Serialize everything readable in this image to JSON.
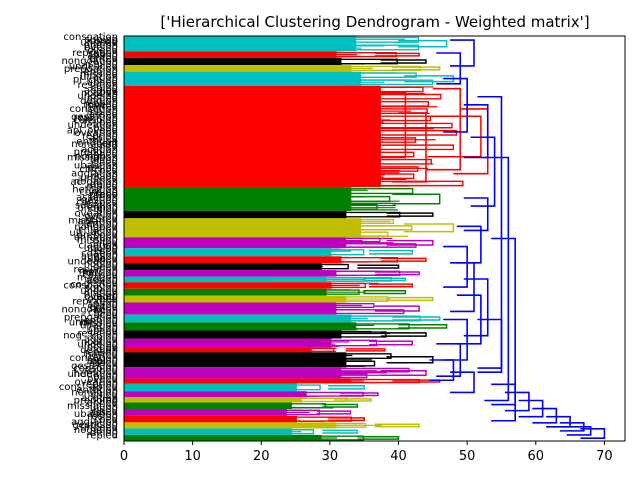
{
  "chart_data": {
    "type": "dendrogram",
    "title": "['Hierarchical Clustering Dendrogram - Weighted matrix']",
    "orientation": "left",
    "xlabel": "",
    "ylabel": "",
    "xlim": [
      0,
      73
    ],
    "x_ticks": [
      0,
      10,
      20,
      30,
      40,
      50,
      60,
      70
    ],
    "grid": false,
    "legend": "none",
    "leaf_labels_visible": [
      "conso",
      "sub",
      "unde",
      "pi",
      "ove",
      "ove",
      "repr",
      "apl",
      "ent",
      "nongo",
      "chi",
      "ac",
      "prepo",
      "enh",
      "missi",
      "ulf",
      "cla",
      "uba",
      "res",
      "co",
      "aggl",
      "nc",
      "unde",
      "nog",
      "de",
      "repl",
      "hetr",
      "cons",
      "ma",
      "ass",
      "gest"
    ],
    "colors": {
      "cyan": "#00bfbf",
      "red": "#ff0000",
      "green": "#008000",
      "black": "#000000",
      "olive": "#bfbf00",
      "magenta": "#bf00bf",
      "blue": "#0000ff"
    },
    "clusters": [
      {
        "color": "cyan",
        "y_top": 0.0,
        "y_bottom": 0.038,
        "merge_height": 47
      },
      {
        "color": "red",
        "y_top": 0.038,
        "y_bottom": 0.054,
        "merge_height": 43
      },
      {
        "color": "black",
        "y_top": 0.054,
        "y_bottom": 0.072,
        "merge_height": 44
      },
      {
        "color": "olive",
        "y_top": 0.072,
        "y_bottom": 0.088,
        "merge_height": 46
      },
      {
        "color": "cyan",
        "y_top": 0.088,
        "y_bottom": 0.123,
        "merge_height": 48
      },
      {
        "color": "red",
        "y_top": 0.123,
        "y_bottom": 0.373,
        "merge_height": 52
      },
      {
        "color": "green",
        "y_top": 0.373,
        "y_bottom": 0.432,
        "merge_height": 46
      },
      {
        "color": "black",
        "y_top": 0.432,
        "y_bottom": 0.45,
        "merge_height": 45
      },
      {
        "color": "olive",
        "y_top": 0.45,
        "y_bottom": 0.497,
        "merge_height": 48
      },
      {
        "color": "magenta",
        "y_top": 0.497,
        "y_bottom": 0.524,
        "merge_height": 45
      },
      {
        "color": "cyan",
        "y_top": 0.524,
        "y_bottom": 0.544,
        "merge_height": 42
      },
      {
        "color": "red",
        "y_top": 0.544,
        "y_bottom": 0.561,
        "merge_height": 44
      },
      {
        "color": "black",
        "y_top": 0.561,
        "y_bottom": 0.578,
        "merge_height": 40
      },
      {
        "color": "magenta",
        "y_top": 0.578,
        "y_bottom": 0.594,
        "merge_height": 43
      },
      {
        "color": "cyan",
        "y_top": 0.594,
        "y_bottom": 0.608,
        "merge_height": 41
      },
      {
        "color": "red",
        "y_top": 0.608,
        "y_bottom": 0.624,
        "merge_height": 42
      },
      {
        "color": "green",
        "y_top": 0.624,
        "y_bottom": 0.641,
        "merge_height": 41
      },
      {
        "color": "olive",
        "y_top": 0.641,
        "y_bottom": 0.658,
        "merge_height": 45
      },
      {
        "color": "magenta",
        "y_top": 0.658,
        "y_bottom": 0.688,
        "merge_height": 43
      },
      {
        "color": "cyan",
        "y_top": 0.688,
        "y_bottom": 0.707,
        "merge_height": 46
      },
      {
        "color": "green",
        "y_top": 0.707,
        "y_bottom": 0.727,
        "merge_height": 47
      },
      {
        "color": "black",
        "y_top": 0.727,
        "y_bottom": 0.747,
        "merge_height": 44
      },
      {
        "color": "magenta",
        "y_top": 0.747,
        "y_bottom": 0.769,
        "merge_height": 42
      },
      {
        "color": "red",
        "y_top": 0.769,
        "y_bottom": 0.781,
        "merge_height": 38
      },
      {
        "color": "black",
        "y_top": 0.781,
        "y_bottom": 0.818,
        "merge_height": 45
      },
      {
        "color": "magenta",
        "y_top": 0.818,
        "y_bottom": 0.846,
        "merge_height": 44
      },
      {
        "color": "red",
        "y_top": 0.846,
        "y_bottom": 0.858,
        "merge_height": 46
      },
      {
        "color": "cyan",
        "y_top": 0.858,
        "y_bottom": 0.877,
        "merge_height": 35
      },
      {
        "color": "magenta",
        "y_top": 0.877,
        "y_bottom": 0.892,
        "merge_height": 37
      },
      {
        "color": "olive",
        "y_top": 0.892,
        "y_bottom": 0.905,
        "merge_height": 36
      },
      {
        "color": "green",
        "y_top": 0.905,
        "y_bottom": 0.921,
        "merge_height": 34
      },
      {
        "color": "magenta",
        "y_top": 0.921,
        "y_bottom": 0.938,
        "merge_height": 33
      },
      {
        "color": "red",
        "y_top": 0.938,
        "y_bottom": 0.954,
        "merge_height": 35
      },
      {
        "color": "olive",
        "y_top": 0.954,
        "y_bottom": 0.969,
        "merge_height": 43
      },
      {
        "color": "cyan",
        "y_top": 0.969,
        "y_bottom": 0.985,
        "merge_height": 34
      },
      {
        "color": "green",
        "y_top": 0.985,
        "y_bottom": 1.0,
        "merge_height": 40
      }
    ],
    "blue_links": [
      {
        "y_top": 0.01,
        "y_bottom": 0.074,
        "height": 51
      },
      {
        "y_top": 0.042,
        "y_bottom": 0.118,
        "height": 49
      },
      {
        "y_top": 0.105,
        "y_bottom": 0.237,
        "height": 50
      },
      {
        "y_top": 0.17,
        "y_bottom": 0.3,
        "height": 53
      },
      {
        "y_top": 0.25,
        "y_bottom": 0.42,
        "height": 54
      },
      {
        "y_top": 0.4,
        "y_bottom": 0.48,
        "height": 53
      },
      {
        "y_top": 0.47,
        "y_bottom": 0.56,
        "height": 52
      },
      {
        "y_top": 0.52,
        "y_bottom": 0.62,
        "height": 50
      },
      {
        "y_top": 0.56,
        "y_bottom": 0.68,
        "height": 51
      },
      {
        "y_top": 0.6,
        "y_bottom": 0.74,
        "height": 53
      },
      {
        "y_top": 0.64,
        "y_bottom": 0.76,
        "height": 52
      },
      {
        "y_top": 0.7,
        "y_bottom": 0.8,
        "height": 50
      },
      {
        "y_top": 0.7,
        "y_bottom": 0.83,
        "height": 55
      },
      {
        "y_top": 0.76,
        "y_bottom": 0.84,
        "height": 49
      },
      {
        "y_top": 0.8,
        "y_bottom": 0.85,
        "height": 48
      },
      {
        "y_top": 0.83,
        "y_bottom": 0.88,
        "height": 51
      },
      {
        "y_top": 0.86,
        "y_bottom": 0.91,
        "height": 57
      },
      {
        "y_top": 0.88,
        "y_bottom": 0.925,
        "height": 59
      },
      {
        "y_top": 0.9,
        "y_bottom": 0.94,
        "height": 61
      },
      {
        "y_top": 0.92,
        "y_bottom": 0.955,
        "height": 63
      },
      {
        "y_top": 0.94,
        "y_bottom": 0.965,
        "height": 65
      },
      {
        "y_top": 0.955,
        "y_bottom": 0.975,
        "height": 67
      },
      {
        "y_top": 0.965,
        "y_bottom": 0.985,
        "height": 68
      },
      {
        "y_top": 0.97,
        "y_bottom": 0.993,
        "height": 70
      },
      {
        "y_top": 0.15,
        "y_bottom": 0.82,
        "height": 55
      },
      {
        "y_top": 0.3,
        "y_bottom": 0.9,
        "height": 56
      },
      {
        "y_top": 0.5,
        "y_bottom": 0.95,
        "height": 57
      }
    ]
  }
}
